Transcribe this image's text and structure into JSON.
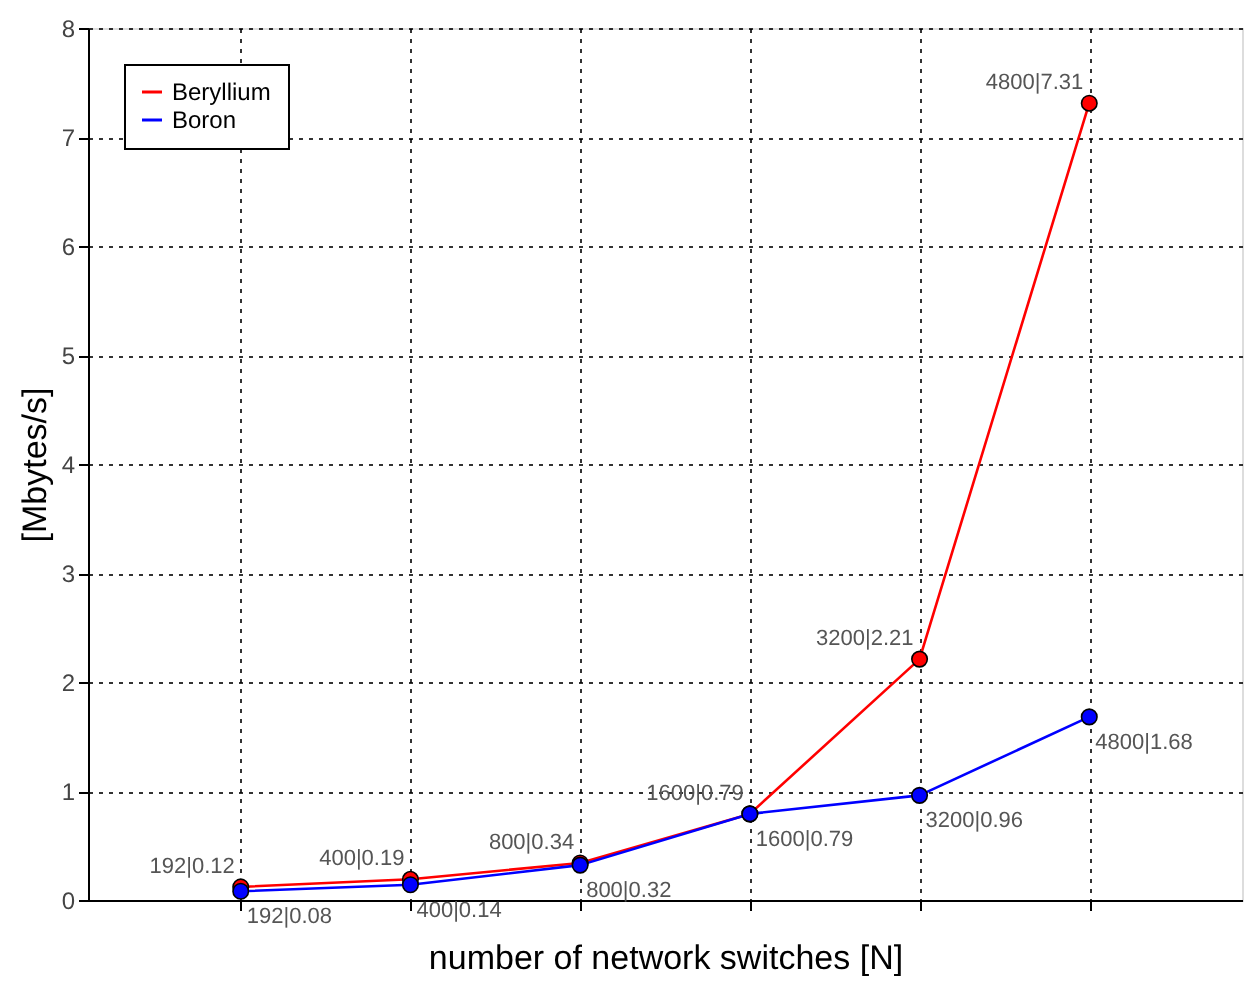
{
  "chart_data": {
    "type": "line",
    "xlabel": "number of network switches [N]",
    "ylabel": "[Mbytes/s]",
    "categories": [
      null,
      null,
      null,
      null,
      null,
      null
    ],
    "ylim": [
      0,
      8
    ],
    "yticks": [
      0,
      1,
      2,
      3,
      4,
      5,
      6,
      7,
      8
    ],
    "grid": true,
    "legend": "top left",
    "marker": "circle",
    "line_style": "solid",
    "tick_labels": "y",
    "series": [
      {
        "name": "Beryllium",
        "color": "#ff0000",
        "values": [
          0.12,
          0.19,
          0.34,
          0.79,
          2.21,
          7.31
        ],
        "value_labels": [
          "192|0.12",
          "400|0.19",
          "800|0.34",
          "1600|0.79",
          "3200|2.21",
          "4800|7.31"
        ]
      },
      {
        "name": "Boron",
        "color": "#0000ff",
        "values": [
          0.08,
          0.14,
          0.32,
          0.79,
          0.96,
          1.68
        ],
        "value_labels": [
          "192|0.08",
          "400|0.14",
          "800|0.32",
          "1600|0.79",
          "3200|0.96",
          "4800|1.68"
        ]
      }
    ]
  }
}
